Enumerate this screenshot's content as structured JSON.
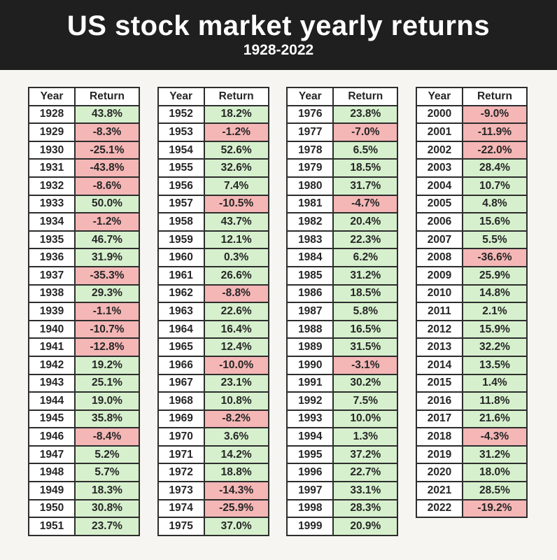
{
  "header": {
    "title": "US stock market yearly returns",
    "subtitle": "1928-2022",
    "background_color": "#1f1f1f",
    "text_color": "#ffffff"
  },
  "chart_data": {
    "type": "table",
    "title": "US stock market yearly returns",
    "subtitle": "1928-2022",
    "columns": [
      "Year",
      "Return"
    ],
    "value_suffix": "%",
    "positive_fill": "#d6f0cd",
    "negative_fill": "#f5b6b6",
    "groups": [
      {
        "years": [
          1928,
          1929,
          1930,
          1931,
          1932,
          1933,
          1934,
          1935,
          1936,
          1937,
          1938,
          1939,
          1940,
          1941,
          1942,
          1943,
          1944,
          1945,
          1946,
          1947,
          1948,
          1949,
          1950,
          1951
        ],
        "returns": [
          43.8,
          -8.3,
          -25.1,
          -43.8,
          -8.6,
          50.0,
          -1.2,
          46.7,
          31.9,
          -35.3,
          29.3,
          -1.1,
          -10.7,
          -12.8,
          19.2,
          25.1,
          19.0,
          35.8,
          -8.4,
          5.2,
          5.7,
          18.3,
          30.8,
          23.7
        ]
      },
      {
        "years": [
          1952,
          1953,
          1954,
          1955,
          1956,
          1957,
          1958,
          1959,
          1960,
          1961,
          1962,
          1963,
          1964,
          1965,
          1966,
          1967,
          1968,
          1969,
          1970,
          1971,
          1972,
          1973,
          1974,
          1975
        ],
        "returns": [
          18.2,
          -1.2,
          52.6,
          32.6,
          7.4,
          -10.5,
          43.7,
          12.1,
          0.3,
          26.6,
          -8.8,
          22.6,
          16.4,
          12.4,
          -10.0,
          23.1,
          10.8,
          -8.2,
          3.6,
          14.2,
          18.8,
          -14.3,
          -25.9,
          37.0
        ]
      },
      {
        "years": [
          1976,
          1977,
          1978,
          1979,
          1980,
          1981,
          1982,
          1983,
          1984,
          1985,
          1986,
          1987,
          1988,
          1989,
          1990,
          1991,
          1992,
          1993,
          1994,
          1995,
          1996,
          1997,
          1998,
          1999
        ],
        "returns": [
          23.8,
          -7.0,
          6.5,
          18.5,
          31.7,
          -4.7,
          20.4,
          22.3,
          6.2,
          31.2,
          18.5,
          5.8,
          16.5,
          31.5,
          -3.1,
          30.2,
          7.5,
          10.0,
          1.3,
          37.2,
          22.7,
          33.1,
          28.3,
          20.9
        ]
      },
      {
        "years": [
          2000,
          2001,
          2002,
          2003,
          2004,
          2005,
          2006,
          2007,
          2008,
          2009,
          2010,
          2011,
          2012,
          2013,
          2014,
          2015,
          2016,
          2017,
          2018,
          2019,
          2020,
          2021,
          2022
        ],
        "returns": [
          -9.0,
          -11.9,
          -22.0,
          28.4,
          10.7,
          4.8,
          15.6,
          5.5,
          -36.6,
          25.9,
          14.8,
          2.1,
          15.9,
          32.2,
          13.5,
          1.4,
          11.8,
          21.6,
          -4.3,
          31.2,
          18.0,
          28.5,
          -19.2
        ]
      }
    ]
  }
}
